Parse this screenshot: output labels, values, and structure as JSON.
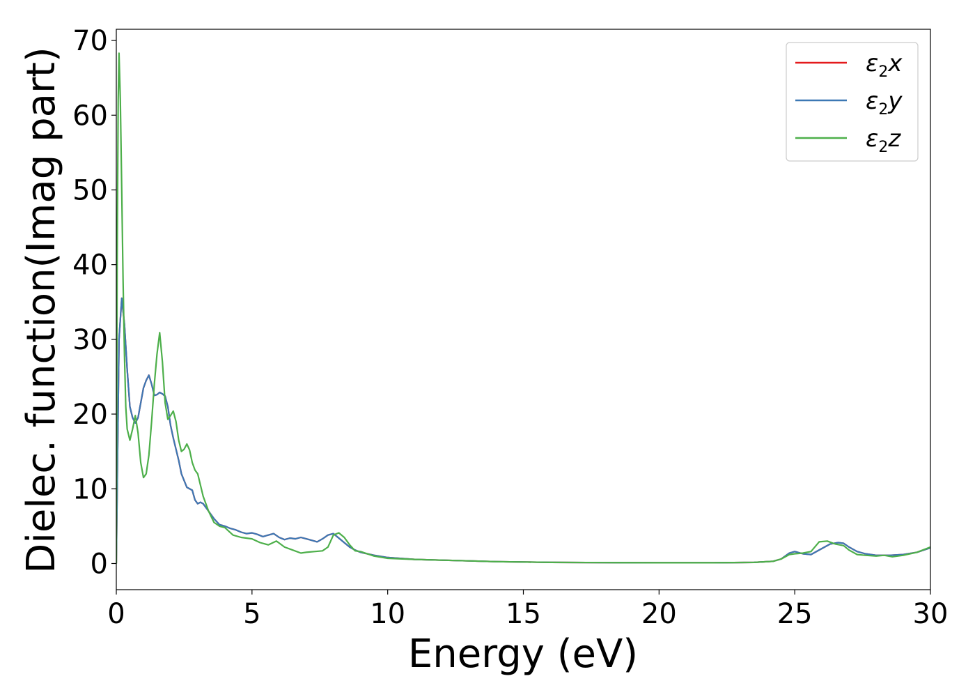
{
  "chart_data": {
    "type": "line",
    "title": "",
    "xlabel": "Energy (eV)",
    "ylabel": "Dielec. function(Imag part)",
    "xlim": [
      0,
      30
    ],
    "ylim": [
      -3.5,
      71.5
    ],
    "x_ticks": [
      0,
      5,
      10,
      15,
      20,
      25,
      30
    ],
    "y_ticks": [
      0,
      10,
      20,
      30,
      40,
      50,
      60,
      70
    ],
    "grid": false,
    "legend_position": "top-right",
    "series": [
      {
        "name": "ε2x",
        "legend": {
          "base": "ε",
          "sub": "2",
          "tail": "x"
        },
        "color": "#e41a1c",
        "x": [
          0,
          0.05,
          0.1,
          0.2,
          0.3,
          0.4,
          0.5,
          0.6,
          0.7,
          0.8,
          0.9,
          1.0,
          1.1,
          1.2,
          1.3,
          1.4,
          1.5,
          1.6,
          1.7,
          1.8,
          1.9,
          2.0,
          2.1,
          2.2,
          2.3,
          2.4,
          2.6,
          2.8,
          2.9,
          3.0,
          3.1,
          3.2,
          3.4,
          3.6,
          3.8,
          4.0,
          4.2,
          4.4,
          4.6,
          4.8,
          5.0,
          5.2,
          5.4,
          5.6,
          5.8,
          6.0,
          6.2,
          6.4,
          6.6,
          6.8,
          7.0,
          7.2,
          7.4,
          7.6,
          7.8,
          8.0,
          8.2,
          8.4,
          8.6,
          8.8,
          9.0,
          9.5,
          10.0,
          11.0,
          12.0,
          13.0,
          14.0,
          15.0,
          16.0,
          18.0,
          20.0,
          22.0,
          23.5,
          24.2,
          24.5,
          24.8,
          25.0,
          25.3,
          25.6,
          26.0,
          26.3,
          26.6,
          26.8,
          27.0,
          27.3,
          27.6,
          28.0,
          28.5,
          29.0,
          29.5,
          30.0
        ],
        "y": [
          0,
          15,
          30,
          35.5,
          32,
          26,
          21,
          19.5,
          18.8,
          19.5,
          21.5,
          23.5,
          24.5,
          25.2,
          24.0,
          22.5,
          22.6,
          22.9,
          22.7,
          22.4,
          21.0,
          18.5,
          16.8,
          15.3,
          13.8,
          12.0,
          10.2,
          9.8,
          8.5,
          8.0,
          8.2,
          8.0,
          7.0,
          6.0,
          5.2,
          5.0,
          4.7,
          4.5,
          4.2,
          4.0,
          4.1,
          3.9,
          3.6,
          3.8,
          4.0,
          3.5,
          3.2,
          3.4,
          3.3,
          3.5,
          3.3,
          3.1,
          2.9,
          3.3,
          3.8,
          4.0,
          3.4,
          2.8,
          2.2,
          1.8,
          1.5,
          1.1,
          0.8,
          0.55,
          0.45,
          0.35,
          0.25,
          0.2,
          0.15,
          0.12,
          0.1,
          0.1,
          0.15,
          0.3,
          0.6,
          1.4,
          1.6,
          1.3,
          1.2,
          2.0,
          2.6,
          2.8,
          2.7,
          2.2,
          1.6,
          1.3,
          1.1,
          1.1,
          1.2,
          1.5,
          2.1
        ]
      },
      {
        "name": "ε2y",
        "legend": {
          "base": "ε",
          "sub": "2",
          "tail": "y"
        },
        "color": "#3c78b4",
        "x": [
          0,
          0.05,
          0.1,
          0.2,
          0.3,
          0.4,
          0.5,
          0.6,
          0.7,
          0.8,
          0.9,
          1.0,
          1.1,
          1.2,
          1.3,
          1.4,
          1.5,
          1.6,
          1.7,
          1.8,
          1.9,
          2.0,
          2.1,
          2.2,
          2.3,
          2.4,
          2.6,
          2.8,
          2.9,
          3.0,
          3.1,
          3.2,
          3.4,
          3.6,
          3.8,
          4.0,
          4.2,
          4.4,
          4.6,
          4.8,
          5.0,
          5.2,
          5.4,
          5.6,
          5.8,
          6.0,
          6.2,
          6.4,
          6.6,
          6.8,
          7.0,
          7.2,
          7.4,
          7.6,
          7.8,
          8.0,
          8.2,
          8.4,
          8.6,
          8.8,
          9.0,
          9.5,
          10.0,
          11.0,
          12.0,
          13.0,
          14.0,
          15.0,
          16.0,
          18.0,
          20.0,
          22.0,
          23.5,
          24.2,
          24.5,
          24.8,
          25.0,
          25.3,
          25.6,
          26.0,
          26.3,
          26.6,
          26.8,
          27.0,
          27.3,
          27.6,
          28.0,
          28.5,
          29.0,
          29.5,
          30.0
        ],
        "y": [
          0,
          15,
          30,
          35.5,
          32,
          26,
          21,
          19.5,
          18.8,
          19.5,
          21.5,
          23.5,
          24.5,
          25.2,
          24.0,
          22.5,
          22.6,
          22.9,
          22.7,
          22.4,
          21.0,
          18.5,
          16.8,
          15.3,
          13.8,
          12.0,
          10.2,
          9.8,
          8.5,
          8.0,
          8.2,
          8.0,
          7.0,
          6.0,
          5.2,
          5.0,
          4.7,
          4.5,
          4.2,
          4.0,
          4.1,
          3.9,
          3.6,
          3.8,
          4.0,
          3.5,
          3.2,
          3.4,
          3.3,
          3.5,
          3.3,
          3.1,
          2.9,
          3.3,
          3.8,
          4.0,
          3.4,
          2.8,
          2.2,
          1.8,
          1.5,
          1.1,
          0.8,
          0.55,
          0.45,
          0.35,
          0.25,
          0.2,
          0.15,
          0.12,
          0.1,
          0.1,
          0.15,
          0.3,
          0.6,
          1.4,
          1.6,
          1.3,
          1.2,
          2.0,
          2.6,
          2.8,
          2.7,
          2.2,
          1.6,
          1.3,
          1.1,
          1.1,
          1.2,
          1.5,
          2.1
        ]
      },
      {
        "name": "ε2z",
        "legend": {
          "base": "ε",
          "sub": "2",
          "tail": "z"
        },
        "color": "#4daf4a",
        "x": [
          0,
          0.03,
          0.07,
          0.1,
          0.15,
          0.2,
          0.25,
          0.3,
          0.35,
          0.4,
          0.5,
          0.6,
          0.7,
          0.8,
          0.9,
          1.0,
          1.1,
          1.2,
          1.3,
          1.4,
          1.5,
          1.6,
          1.7,
          1.8,
          1.9,
          2.0,
          2.1,
          2.2,
          2.3,
          2.4,
          2.5,
          2.6,
          2.7,
          2.8,
          2.9,
          3.0,
          3.1,
          3.2,
          3.4,
          3.6,
          3.8,
          4.0,
          4.3,
          4.6,
          5.0,
          5.3,
          5.6,
          5.9,
          6.2,
          6.5,
          6.8,
          7.0,
          7.3,
          7.6,
          7.8,
          8.0,
          8.2,
          8.4,
          8.6,
          8.8,
          9.0,
          9.5,
          10.0,
          11.0,
          12.0,
          13.0,
          14.0,
          15.0,
          16.0,
          18.0,
          20.0,
          22.0,
          23.5,
          24.2,
          24.5,
          24.8,
          25.0,
          25.3,
          25.6,
          25.9,
          26.2,
          26.5,
          26.8,
          27.0,
          27.3,
          27.6,
          28.0,
          28.3,
          28.6,
          29.0,
          29.5,
          30.0
        ],
        "y": [
          0,
          40,
          62,
          68.3,
          62,
          50,
          38,
          28,
          21,
          18,
          16.5,
          18,
          19.8,
          17.5,
          13.5,
          11.5,
          12.0,
          14.5,
          19.0,
          24.0,
          28.0,
          30.9,
          27.0,
          21.5,
          19.3,
          19.8,
          20.4,
          19.0,
          16.5,
          15.0,
          15.3,
          16.0,
          15.2,
          13.5,
          12.5,
          12.0,
          10.5,
          9.0,
          7.0,
          5.5,
          5.0,
          4.8,
          3.8,
          3.5,
          3.3,
          2.8,
          2.5,
          3.0,
          2.2,
          1.8,
          1.4,
          1.5,
          1.6,
          1.7,
          2.2,
          3.8,
          4.1,
          3.5,
          2.5,
          1.7,
          1.6,
          1.0,
          0.7,
          0.55,
          0.45,
          0.35,
          0.25,
          0.2,
          0.15,
          0.12,
          0.1,
          0.1,
          0.15,
          0.3,
          0.6,
          1.2,
          1.3,
          1.4,
          1.6,
          2.9,
          3.0,
          2.6,
          2.4,
          1.8,
          1.2,
          1.1,
          1.0,
          1.1,
          0.9,
          1.1,
          1.5,
          2.2
        ]
      }
    ]
  }
}
